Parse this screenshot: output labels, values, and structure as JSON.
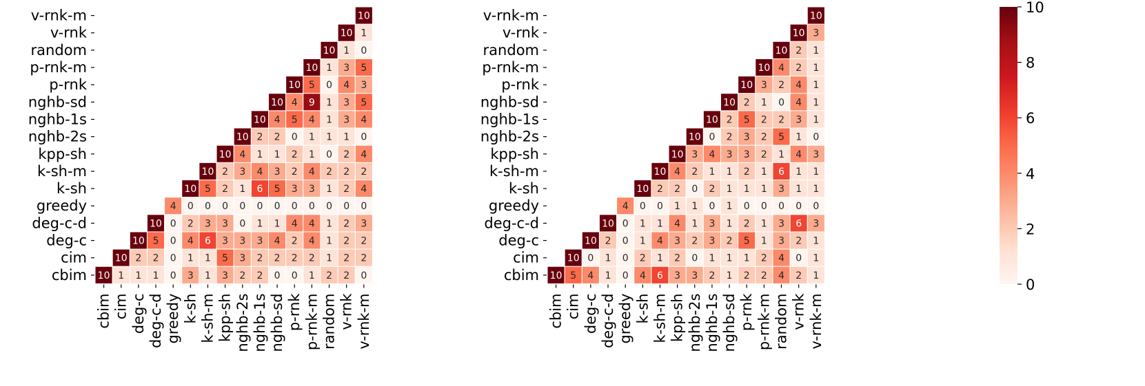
{
  "chart_data": [
    {
      "type": "heatmap",
      "triangle": "lower",
      "labels": [
        "cbim",
        "cim",
        "deg-c",
        "deg-c-d",
        "greedy",
        "k-sh",
        "k-sh-m",
        "kpp-sh",
        "nghb-2s",
        "nghb-1s",
        "nghb-sd",
        "p-rnk",
        "p-rnk-m",
        "random",
        "v-rnk",
        "v-rnk-m"
      ],
      "x_tick_labels": [
        "cbim",
        "cim",
        "deg-c",
        "deg-c-d",
        "greedy",
        "k-sh",
        "k-sh-m",
        "kpp-sh",
        "nghb-2s",
        "nghb-1s",
        "nghb-sd",
        "p-rnk",
        "p-rnk-m",
        "random",
        "v-rnk",
        "v-rnk-m"
      ],
      "y_tick_labels": [
        "v-rnk-m",
        "v-rnk",
        "random",
        "p-rnk-m",
        "p-rnk",
        "nghb-sd",
        "nghb-1s",
        "nghb-2s",
        "kpp-sh",
        "k-sh-m",
        "k-sh",
        "greedy",
        "deg-c-d",
        "deg-c",
        "cim",
        "cbim"
      ],
      "rows": [
        {
          "label": "v-rnk-m",
          "values": [
            10
          ]
        },
        {
          "label": "v-rnk",
          "values": [
            10,
            1
          ]
        },
        {
          "label": "random",
          "values": [
            10,
            1,
            0
          ]
        },
        {
          "label": "p-rnk-m",
          "values": [
            10,
            1,
            3,
            5
          ]
        },
        {
          "label": "p-rnk",
          "values": [
            10,
            5,
            0,
            4,
            3
          ]
        },
        {
          "label": "nghb-sd",
          "values": [
            10,
            4,
            9,
            1,
            3,
            5
          ]
        },
        {
          "label": "nghb-1s",
          "values": [
            10,
            4,
            5,
            4,
            1,
            3,
            4
          ]
        },
        {
          "label": "nghb-2s",
          "values": [
            10,
            2,
            2,
            0,
            1,
            1,
            1,
            0
          ]
        },
        {
          "label": "kpp-sh",
          "values": [
            10,
            4,
            1,
            1,
            2,
            1,
            0,
            2,
            4
          ]
        },
        {
          "label": "k-sh-m",
          "values": [
            10,
            2,
            3,
            4,
            3,
            2,
            4,
            2,
            2,
            2
          ]
        },
        {
          "label": "k-sh",
          "values": [
            10,
            5,
            2,
            1,
            6,
            5,
            3,
            3,
            1,
            2,
            4
          ]
        },
        {
          "label": "greedy",
          "values": [
            4,
            0,
            0,
            0,
            0,
            0,
            0,
            0,
            0,
            0,
            0,
            0
          ]
        },
        {
          "label": "deg-c-d",
          "values": [
            10,
            0,
            2,
            3,
            3,
            0,
            1,
            1,
            4,
            4,
            1,
            2,
            3
          ]
        },
        {
          "label": "deg-c",
          "values": [
            10,
            5,
            0,
            4,
            6,
            3,
            3,
            3,
            4,
            2,
            4,
            1,
            2,
            2
          ]
        },
        {
          "label": "cim",
          "values": [
            10,
            2,
            2,
            0,
            1,
            1,
            5,
            3,
            2,
            2,
            2,
            2,
            1,
            2,
            2
          ]
        },
        {
          "label": "cbim",
          "values": [
            10,
            1,
            1,
            1,
            0,
            3,
            1,
            3,
            2,
            2,
            0,
            0,
            1,
            2,
            2,
            0
          ]
        }
      ]
    },
    {
      "type": "heatmap",
      "triangle": "lower",
      "labels": [
        "cbim",
        "cim",
        "deg-c",
        "deg-c-d",
        "greedy",
        "k-sh",
        "k-sh-m",
        "kpp-sh",
        "nghb-2s",
        "nghb-1s",
        "nghb-sd",
        "p-rnk",
        "p-rnk-m",
        "random",
        "v-rnk",
        "v-rnk-m"
      ],
      "x_tick_labels": [
        "cbim",
        "cim",
        "deg-c",
        "deg-c-d",
        "greedy",
        "k-sh",
        "k-sh-m",
        "kpp-sh",
        "nghb-2s",
        "nghb-1s",
        "nghb-sd",
        "p-rnk",
        "p-rnk-m",
        "random",
        "v-rnk",
        "v-rnk-m"
      ],
      "y_tick_labels": [
        "v-rnk-m",
        "v-rnk",
        "random",
        "p-rnk-m",
        "p-rnk",
        "nghb-sd",
        "nghb-1s",
        "nghb-2s",
        "kpp-sh",
        "k-sh-m",
        "k-sh",
        "greedy",
        "deg-c-d",
        "deg-c",
        "cim",
        "cbim"
      ],
      "rows": [
        {
          "label": "v-rnk-m",
          "values": [
            10
          ]
        },
        {
          "label": "v-rnk",
          "values": [
            10,
            3
          ]
        },
        {
          "label": "random",
          "values": [
            10,
            2,
            1
          ]
        },
        {
          "label": "p-rnk-m",
          "values": [
            10,
            4,
            2,
            1
          ]
        },
        {
          "label": "p-rnk",
          "values": [
            10,
            3,
            2,
            4,
            1
          ]
        },
        {
          "label": "nghb-sd",
          "values": [
            10,
            2,
            1,
            0,
            4,
            1
          ]
        },
        {
          "label": "nghb-1s",
          "values": [
            10,
            2,
            5,
            2,
            2,
            3,
            1
          ]
        },
        {
          "label": "nghb-2s",
          "values": [
            10,
            0,
            2,
            3,
            2,
            5,
            1,
            0
          ]
        },
        {
          "label": "kpp-sh",
          "values": [
            10,
            3,
            4,
            3,
            3,
            2,
            1,
            4,
            3
          ]
        },
        {
          "label": "k-sh-m",
          "values": [
            10,
            4,
            2,
            1,
            1,
            2,
            1,
            6,
            1,
            1
          ]
        },
        {
          "label": "k-sh",
          "values": [
            10,
            2,
            2,
            0,
            2,
            1,
            1,
            1,
            3,
            1,
            1
          ]
        },
        {
          "label": "greedy",
          "values": [
            4,
            0,
            0,
            1,
            1,
            0,
            1,
            0,
            0,
            0,
            0,
            0
          ]
        },
        {
          "label": "deg-c-d",
          "values": [
            10,
            0,
            1,
            1,
            4,
            1,
            3,
            1,
            2,
            1,
            3,
            6,
            3
          ]
        },
        {
          "label": "deg-c",
          "values": [
            10,
            2,
            0,
            1,
            4,
            3,
            2,
            3,
            2,
            5,
            1,
            3,
            2,
            1
          ]
        },
        {
          "label": "cim",
          "values": [
            10,
            0,
            1,
            0,
            2,
            1,
            2,
            0,
            1,
            1,
            1,
            2,
            4,
            0,
            1
          ]
        },
        {
          "label": "cbim",
          "values": [
            10,
            5,
            4,
            1,
            0,
            4,
            6,
            3,
            3,
            2,
            1,
            2,
            2,
            4,
            2,
            1
          ]
        }
      ]
    }
  ],
  "colorbar": {
    "colormap": "Reds",
    "vmin": 0,
    "vmax": 10,
    "ticks": [
      0,
      2,
      4,
      6,
      8,
      10
    ]
  },
  "colors": {
    "cell_border": "#ffffff",
    "text_on_dark": "#ffffff",
    "text_on_light": "#262626"
  }
}
